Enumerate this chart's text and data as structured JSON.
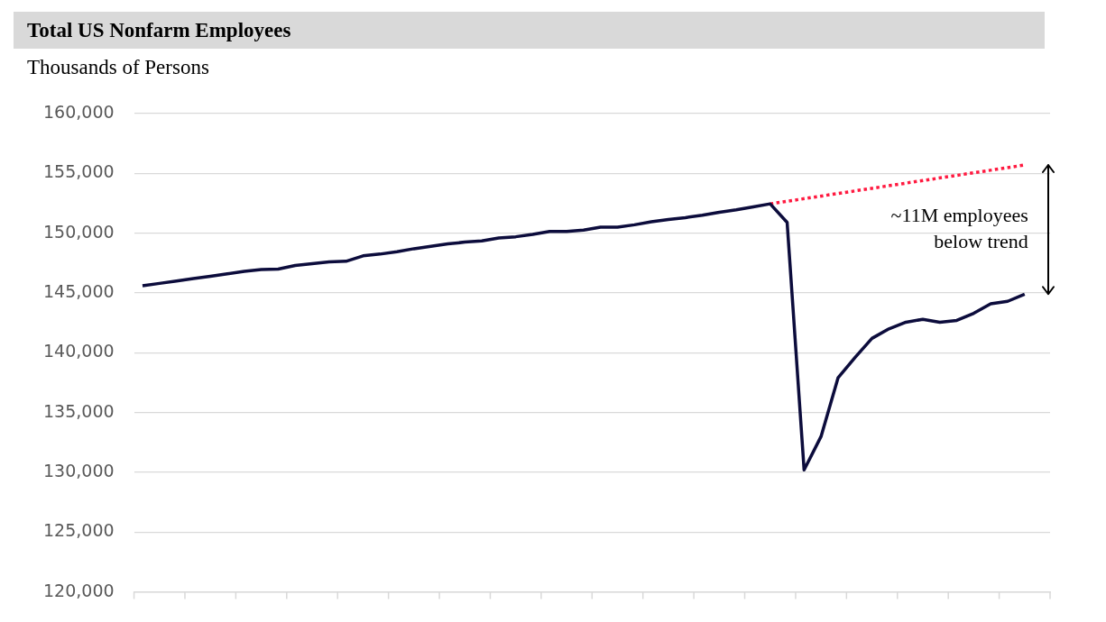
{
  "chart_data": {
    "type": "line",
    "title": "Total US Nonfarm Employees",
    "ylabel": "Thousands of Persons",
    "categories": [
      null,
      null,
      null,
      null,
      null,
      null,
      null,
      null,
      null,
      null,
      null,
      null,
      null,
      null,
      null,
      null,
      null,
      null,
      null,
      null,
      null,
      null,
      null,
      null,
      null,
      null,
      null,
      null,
      null,
      null,
      null,
      null,
      null,
      null,
      null,
      null,
      null,
      null,
      null,
      null,
      null,
      null,
      null,
      null,
      null,
      null,
      null,
      null,
      null,
      null,
      null,
      null,
      null,
      null
    ],
    "series": [
      {
        "color": "#0c0c3c",
        "values": [
          145600,
          145800,
          146000,
          146200,
          146400,
          146600,
          146800,
          146950,
          147000,
          147300,
          147450,
          147600,
          147650,
          148100,
          148250,
          148450,
          148700,
          148900,
          149100,
          149250,
          149350,
          149600,
          149700,
          149900,
          150150,
          150150,
          150250,
          150500,
          150500,
          150700,
          150950,
          151150,
          151300,
          151500,
          151750,
          151950,
          152200,
          152450,
          150900,
          130200,
          133000,
          137900,
          139600,
          141200,
          142000,
          142550,
          142800,
          142550,
          142700,
          143300,
          144100,
          144300,
          144900,
          null
        ]
      },
      {
        "color": "#ff1a40",
        "line_style": "dotted",
        "values": [
          null,
          null,
          null,
          null,
          null,
          null,
          null,
          null,
          null,
          null,
          null,
          null,
          null,
          null,
          null,
          null,
          null,
          null,
          null,
          null,
          null,
          null,
          null,
          null,
          null,
          null,
          null,
          null,
          null,
          null,
          null,
          null,
          null,
          null,
          null,
          null,
          null,
          152450,
          null,
          null,
          null,
          null,
          null,
          null,
          null,
          null,
          null,
          null,
          null,
          null,
          null,
          null,
          155700,
          null
        ]
      }
    ],
    "ylim": [
      120000,
      160000
    ],
    "yticks": [
      {
        "value": 120000,
        "label": "120,000"
      },
      {
        "value": 125000,
        "label": "125,000"
      },
      {
        "value": 130000,
        "label": "130,000"
      },
      {
        "value": 135000,
        "label": "135,000"
      },
      {
        "value": 140000,
        "label": "140,000"
      },
      {
        "value": 145000,
        "label": "145,000"
      },
      {
        "value": 150000,
        "label": "150,000"
      },
      {
        "value": 155000,
        "label": "155,000"
      },
      {
        "value": 160000,
        "label": "160,000"
      }
    ],
    "grid": "y",
    "legend": false,
    "tick_labels": "y",
    "annotations": [
      "~11M employees below trend"
    ]
  }
}
